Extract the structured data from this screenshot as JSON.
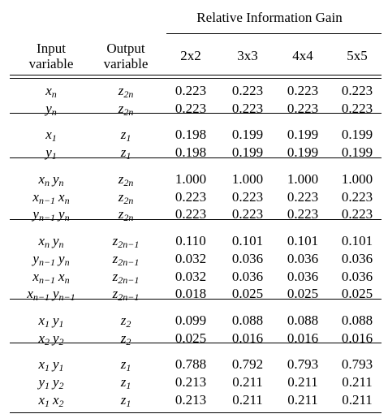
{
  "header": {
    "group_title": "Relative Information Gain",
    "columns": [
      "Input variable",
      "Output variable",
      "2x2",
      "3x3",
      "4x4",
      "5x5"
    ]
  },
  "groups": [
    {
      "rows": [
        {
          "input": [
            {
              "v": "x",
              "s": "n"
            }
          ],
          "output": [
            {
              "v": "z",
              "s": "2n"
            }
          ],
          "values": [
            "0.223",
            "0.223",
            "0.223",
            "0.223"
          ]
        },
        {
          "input": [
            {
              "v": "y",
              "s": "n"
            }
          ],
          "output": [
            {
              "v": "z",
              "s": "2n"
            }
          ],
          "values": [
            "0.223",
            "0.223",
            "0.223",
            "0.223"
          ]
        }
      ]
    },
    {
      "rows": [
        {
          "input": [
            {
              "v": "x",
              "s": "1"
            }
          ],
          "output": [
            {
              "v": "z",
              "s": "1"
            }
          ],
          "values": [
            "0.198",
            "0.199",
            "0.199",
            "0.199"
          ]
        },
        {
          "input": [
            {
              "v": "y",
              "s": "1"
            }
          ],
          "output": [
            {
              "v": "z",
              "s": "1"
            }
          ],
          "values": [
            "0.198",
            "0.199",
            "0.199",
            "0.199"
          ]
        }
      ]
    },
    {
      "rows": [
        {
          "input": [
            {
              "v": "x",
              "s": "n"
            },
            {
              "v": "y",
              "s": "n"
            }
          ],
          "output": [
            {
              "v": "z",
              "s": "2n"
            }
          ],
          "values": [
            "1.000",
            "1.000",
            "1.000",
            "1.000"
          ]
        },
        {
          "input": [
            {
              "v": "x",
              "s": "n−1"
            },
            {
              "v": "x",
              "s": "n"
            }
          ],
          "output": [
            {
              "v": "z",
              "s": "2n"
            }
          ],
          "values": [
            "0.223",
            "0.223",
            "0.223",
            "0.223"
          ]
        },
        {
          "input": [
            {
              "v": "y",
              "s": "n−1"
            },
            {
              "v": "y",
              "s": "n"
            }
          ],
          "output": [
            {
              "v": "z",
              "s": "2n"
            }
          ],
          "values": [
            "0.223",
            "0.223",
            "0.223",
            "0.223"
          ]
        }
      ]
    },
    {
      "rows": [
        {
          "input": [
            {
              "v": "x",
              "s": "n"
            },
            {
              "v": "y",
              "s": "n"
            }
          ],
          "output": [
            {
              "v": "z",
              "s": "2n−1"
            }
          ],
          "values": [
            "0.110",
            "0.101",
            "0.101",
            "0.101"
          ]
        },
        {
          "input": [
            {
              "v": "y",
              "s": "n−1"
            },
            {
              "v": "y",
              "s": "n"
            }
          ],
          "output": [
            {
              "v": "z",
              "s": "2n−1"
            }
          ],
          "values": [
            "0.032",
            "0.036",
            "0.036",
            "0.036"
          ]
        },
        {
          "input": [
            {
              "v": "x",
              "s": "n−1"
            },
            {
              "v": "x",
              "s": "n"
            }
          ],
          "output": [
            {
              "v": "z",
              "s": "2n−1"
            }
          ],
          "values": [
            "0.032",
            "0.036",
            "0.036",
            "0.036"
          ]
        },
        {
          "input": [
            {
              "v": "x",
              "s": "n−1"
            },
            {
              "v": "y",
              "s": "n−1"
            }
          ],
          "output": [
            {
              "v": "z",
              "s": "2n−1"
            }
          ],
          "values": [
            "0.018",
            "0.025",
            "0.025",
            "0.025"
          ]
        }
      ]
    },
    {
      "rows": [
        {
          "input": [
            {
              "v": "x",
              "s": "1"
            },
            {
              "v": "y",
              "s": "1"
            }
          ],
          "output": [
            {
              "v": "z",
              "s": "2"
            }
          ],
          "values": [
            "0.099",
            "0.088",
            "0.088",
            "0.088"
          ]
        },
        {
          "input": [
            {
              "v": "x",
              "s": "2"
            },
            {
              "v": "y",
              "s": "2"
            }
          ],
          "output": [
            {
              "v": "z",
              "s": "2"
            }
          ],
          "values": [
            "0.025",
            "0.016",
            "0.016",
            "0.016"
          ]
        }
      ]
    },
    {
      "rows": [
        {
          "input": [
            {
              "v": "x",
              "s": "1"
            },
            {
              "v": "y",
              "s": "1"
            }
          ],
          "output": [
            {
              "v": "z",
              "s": "1"
            }
          ],
          "values": [
            "0.788",
            "0.792",
            "0.793",
            "0.793"
          ]
        },
        {
          "input": [
            {
              "v": "y",
              "s": "1"
            },
            {
              "v": "y",
              "s": "2"
            }
          ],
          "output": [
            {
              "v": "z",
              "s": "1"
            }
          ],
          "values": [
            "0.213",
            "0.211",
            "0.211",
            "0.211"
          ]
        },
        {
          "input": [
            {
              "v": "x",
              "s": "1"
            },
            {
              "v": "x",
              "s": "2"
            }
          ],
          "output": [
            {
              "v": "z",
              "s": "1"
            }
          ],
          "values": [
            "0.213",
            "0.211",
            "0.211",
            "0.211"
          ]
        }
      ]
    }
  ]
}
